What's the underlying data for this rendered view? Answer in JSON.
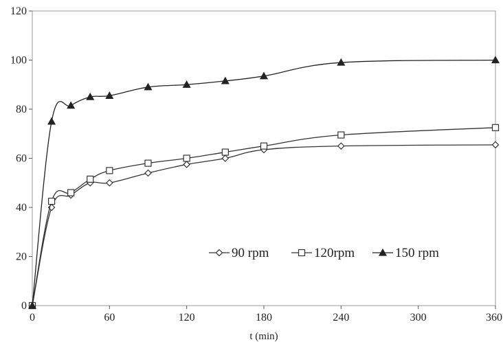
{
  "chart_data": {
    "type": "line",
    "title": "",
    "xlabel": "t (min)",
    "ylabel": "",
    "xlim": [
      0,
      360
    ],
    "ylim": [
      0,
      120
    ],
    "xticks": [
      0,
      60,
      120,
      180,
      240,
      300,
      360
    ],
    "yticks": [
      0,
      20,
      40,
      60,
      80,
      100,
      120
    ],
    "x_tick_labels": [
      "0",
      "60",
      "120",
      "180",
      "240",
      "300",
      "360"
    ],
    "y_tick_labels": [
      "0",
      "20",
      "40",
      "60",
      "80",
      "100",
      "120"
    ],
    "grid": false,
    "legend": "inside-lower-right",
    "series": [
      {
        "name": "90 rpm",
        "marker": "diamond-open",
        "color": "#333333",
        "x": [
          0,
          15,
          30,
          45,
          60,
          90,
          120,
          150,
          180,
          240,
          360
        ],
        "y": [
          0,
          40,
          45,
          50,
          50,
          54,
          57.5,
          60,
          63.5,
          65,
          65.5
        ]
      },
      {
        "name": "120rpm",
        "marker": "square-open",
        "color": "#333333",
        "x": [
          0,
          15,
          30,
          45,
          60,
          90,
          120,
          150,
          180,
          240,
          360
        ],
        "y": [
          0,
          42.5,
          46,
          51.5,
          55,
          58,
          60,
          62.5,
          65,
          69.5,
          72.5
        ]
      },
      {
        "name": "150 rpm",
        "marker": "triangle-filled",
        "color": "#222222",
        "x": [
          0,
          15,
          30,
          45,
          60,
          90,
          120,
          150,
          180,
          240,
          360
        ],
        "y": [
          0,
          75,
          81.5,
          85,
          85.5,
          89,
          90,
          91.5,
          93.5,
          99,
          100
        ]
      }
    ]
  }
}
